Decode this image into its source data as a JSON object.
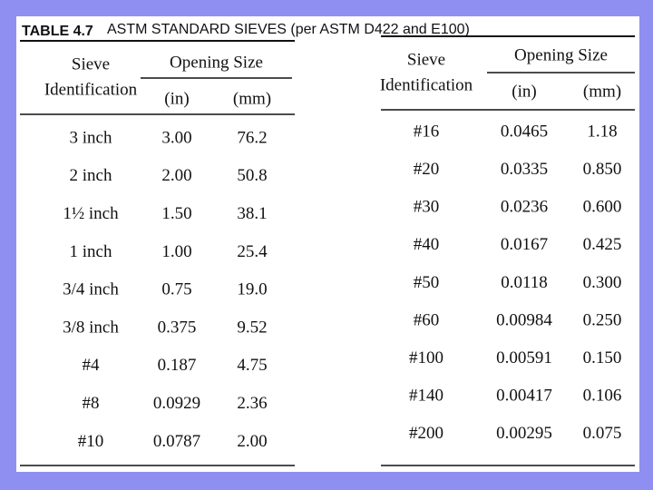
{
  "title": {
    "label": "TABLE 4.7",
    "text": "ASTM STANDARD SIEVES (per ASTM D422 and E100)"
  },
  "tables": [
    {
      "headers": {
        "id": [
          "Sieve",
          "Identification"
        ],
        "opening": "Opening Size",
        "in": "(in)",
        "mm": "(mm)"
      },
      "rows": [
        [
          "3 inch",
          "3.00",
          "76.2"
        ],
        [
          "2 inch",
          "2.00",
          "50.8"
        ],
        [
          "1½ inch",
          "1.50",
          "38.1"
        ],
        [
          "1 inch",
          "1.00",
          "25.4"
        ],
        [
          "3/4 inch",
          "0.75",
          "19.0"
        ],
        [
          "3/8 inch",
          "0.375",
          "9.52"
        ],
        [
          "#4",
          "0.187",
          "4.75"
        ],
        [
          "#8",
          "0.0929",
          "2.36"
        ],
        [
          "#10",
          "0.0787",
          "2.00"
        ]
      ]
    },
    {
      "headers": {
        "id": [
          "Sieve",
          "Identification"
        ],
        "opening": "Opening Size",
        "in": "(in)",
        "mm": "(mm)"
      },
      "rows": [
        [
          "#16",
          "0.0465",
          "1.18"
        ],
        [
          "#20",
          "0.0335",
          "0.850"
        ],
        [
          "#30",
          "0.0236",
          "0.600"
        ],
        [
          "#40",
          "0.0167",
          "0.425"
        ],
        [
          "#50",
          "0.0118",
          "0.300"
        ],
        [
          "#60",
          "0.00984",
          "0.250"
        ],
        [
          "#100",
          "0.00591",
          "0.150"
        ],
        [
          "#140",
          "0.00417",
          "0.106"
        ],
        [
          "#200",
          "0.00295",
          "0.075"
        ]
      ]
    }
  ]
}
